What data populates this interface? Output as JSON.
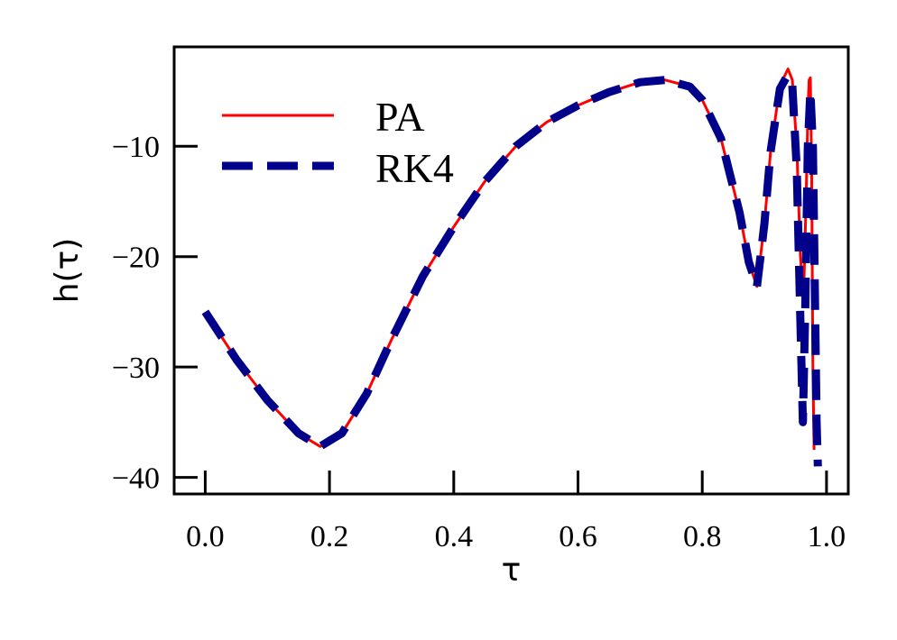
{
  "chart_data": {
    "type": "line",
    "xlabel": "τ",
    "ylabel": "h(τ)",
    "xlim": [
      -0.05,
      1.035
    ],
    "ylim": [
      -41.5,
      -1.0
    ],
    "grid": false,
    "legend_position": "top-left",
    "x_ticks": [
      0.0,
      0.2,
      0.4,
      0.6,
      0.8,
      1.0
    ],
    "x_tick_labels": [
      "0.0",
      "0.2",
      "0.4",
      "0.6",
      "0.8",
      "1.0"
    ],
    "y_ticks": [
      -40,
      -30,
      -20,
      -10
    ],
    "y_tick_labels": [
      "−40",
      "−30",
      "−20",
      "−10"
    ],
    "series": [
      {
        "name": "PA",
        "color": "#ff0000",
        "style": "solid",
        "x": [
          0.0,
          0.05,
          0.1,
          0.15,
          0.185,
          0.22,
          0.26,
          0.3,
          0.35,
          0.4,
          0.45,
          0.5,
          0.55,
          0.6,
          0.65,
          0.7,
          0.74,
          0.78,
          0.8,
          0.83,
          0.86,
          0.875,
          0.888,
          0.9,
          0.91,
          0.925,
          0.938,
          0.945,
          0.952,
          0.958,
          0.963,
          0.967,
          0.97,
          0.972,
          0.974,
          0.976,
          0.978,
          0.98
        ],
        "y": [
          -25.0,
          -29.3,
          -33.0,
          -36.0,
          -37.2,
          -36.0,
          -32.4,
          -27.5,
          -21.8,
          -17.3,
          -13.2,
          -10.0,
          -7.8,
          -6.3,
          -5.1,
          -4.2,
          -4.0,
          -4.6,
          -5.8,
          -9.3,
          -16.0,
          -20.5,
          -22.7,
          -17.0,
          -10.5,
          -4.5,
          -3.0,
          -4.0,
          -10.0,
          -20.0,
          -24.0,
          -15.0,
          -7.0,
          -4.0,
          -3.8,
          -12.0,
          -30.0,
          -37.5
        ]
      },
      {
        "name": "RK4",
        "color": "#00008b",
        "style": "dashed",
        "x": [
          0.0,
          0.05,
          0.1,
          0.15,
          0.185,
          0.22,
          0.26,
          0.3,
          0.35,
          0.4,
          0.45,
          0.5,
          0.55,
          0.6,
          0.65,
          0.7,
          0.74,
          0.78,
          0.8,
          0.83,
          0.86,
          0.875,
          0.888,
          0.9,
          0.91,
          0.925,
          0.937,
          0.945,
          0.952,
          0.958,
          0.962,
          0.966,
          0.97,
          0.974,
          0.978,
          0.981,
          0.984,
          0.986
        ],
        "y": [
          -25.0,
          -29.3,
          -33.0,
          -36.0,
          -37.2,
          -36.0,
          -32.4,
          -27.5,
          -21.8,
          -17.3,
          -13.2,
          -10.0,
          -7.8,
          -6.3,
          -5.1,
          -4.2,
          -4.0,
          -4.6,
          -5.8,
          -9.3,
          -16.0,
          -20.5,
          -22.7,
          -17.0,
          -10.5,
          -4.8,
          -3.6,
          -4.5,
          -12.0,
          -26.0,
          -35.0,
          -24.0,
          -10.0,
          -5.0,
          -10.0,
          -22.0,
          -35.0,
          -39.0
        ]
      }
    ]
  }
}
